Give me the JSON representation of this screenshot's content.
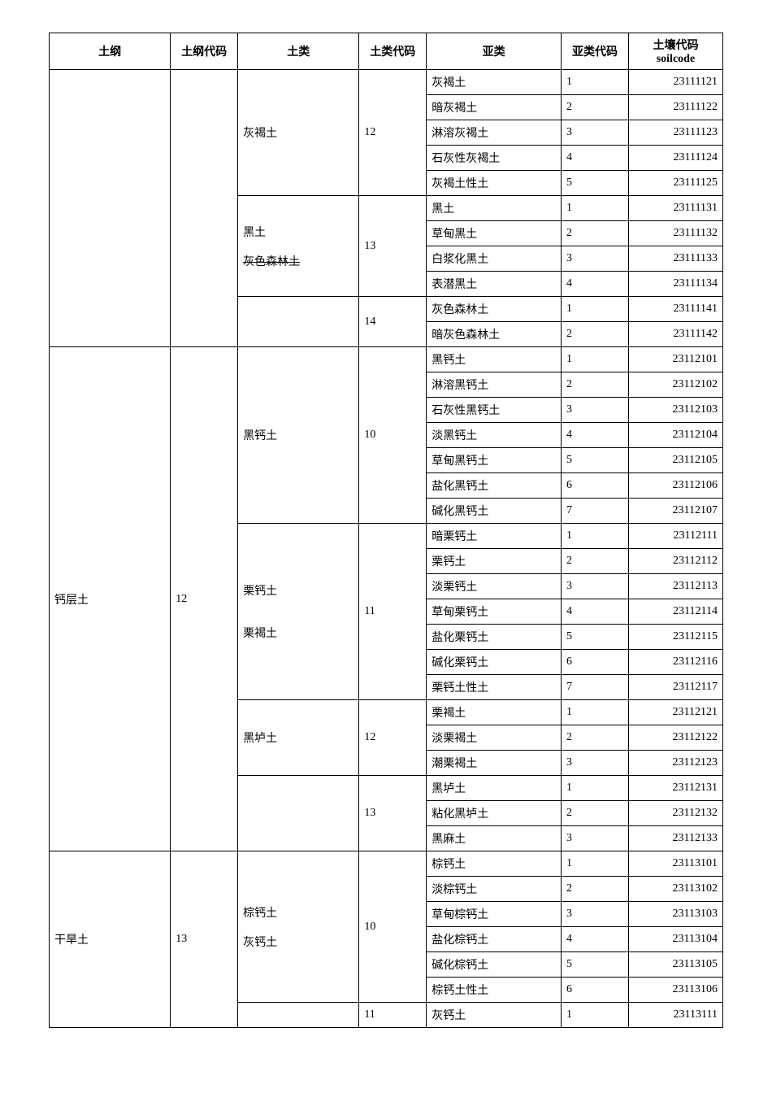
{
  "headers": {
    "h1": "土纲",
    "h2": "土纲代码",
    "h3": "土类",
    "h4": "土类代码",
    "h5": "亚类",
    "h6": "亚类代码",
    "h7": "土壤代码 soilcode"
  },
  "tugang": {
    "empty": "",
    "gaicengtu": "钙层土",
    "ganhantu": "干旱土"
  },
  "tugangcode": {
    "empty": "",
    "c12": "12",
    "c13": "13"
  },
  "tulei": {
    "huihetu": "灰褐土",
    "heitu": "黑土",
    "huisesenlintu": "灰色森林土",
    "heigaitu": "黑钙土",
    "ligaitu": "栗钙土",
    "lihetu": "栗褐土",
    "heilutu": "黑垆土",
    "zonggaitu": "棕钙土",
    "huigaitu": "灰钙土"
  },
  "tuleicode": {
    "c10": "10",
    "c11": "11",
    "c12": "12",
    "c13": "13",
    "c14": "14"
  },
  "rows": [
    {
      "sub": "灰褐土",
      "subcode": "1",
      "soil": "23111121"
    },
    {
      "sub": "暗灰褐土",
      "subcode": "2",
      "soil": "23111122"
    },
    {
      "sub": "淋溶灰褐土",
      "subcode": "3",
      "soil": "23111123"
    },
    {
      "sub": "石灰性灰褐土",
      "subcode": "4",
      "soil": "23111124"
    },
    {
      "sub": "灰褐土性土",
      "subcode": "5",
      "soil": "23111125"
    },
    {
      "sub": "黑土",
      "subcode": "1",
      "soil": "23111131"
    },
    {
      "sub": "草甸黑土",
      "subcode": "2",
      "soil": "23111132"
    },
    {
      "sub": "白浆化黑土",
      "subcode": "3",
      "soil": "23111133"
    },
    {
      "sub": "表潜黑土",
      "subcode": "4",
      "soil": "23111134"
    },
    {
      "sub": "灰色森林土",
      "subcode": "1",
      "soil": "23111141"
    },
    {
      "sub": "暗灰色森林土",
      "subcode": "2",
      "soil": "23111142"
    },
    {
      "sub": "黑钙土",
      "subcode": "1",
      "soil": "23112101"
    },
    {
      "sub": "淋溶黑钙土",
      "subcode": "2",
      "soil": "23112102"
    },
    {
      "sub": "石灰性黑钙土",
      "subcode": "3",
      "soil": "23112103"
    },
    {
      "sub": "淡黑钙土",
      "subcode": "4",
      "soil": "23112104"
    },
    {
      "sub": "草甸黑钙土",
      "subcode": "5",
      "soil": "23112105"
    },
    {
      "sub": "盐化黑钙土",
      "subcode": "6",
      "soil": "23112106"
    },
    {
      "sub": "碱化黑钙土",
      "subcode": "7",
      "soil": "23112107"
    },
    {
      "sub": "暗栗钙土",
      "subcode": "1",
      "soil": "23112111"
    },
    {
      "sub": "栗钙土",
      "subcode": "2",
      "soil": "23112112"
    },
    {
      "sub": "淡栗钙土",
      "subcode": "3",
      "soil": "23112113"
    },
    {
      "sub": "草甸栗钙土",
      "subcode": "4",
      "soil": "23112114"
    },
    {
      "sub": "盐化栗钙土",
      "subcode": "5",
      "soil": "23112115"
    },
    {
      "sub": "碱化栗钙土",
      "subcode": "6",
      "soil": "23112116"
    },
    {
      "sub": "栗钙土性土",
      "subcode": "7",
      "soil": "23112117"
    },
    {
      "sub": "栗褐土",
      "subcode": "1",
      "soil": "23112121"
    },
    {
      "sub": "淡栗褐土",
      "subcode": "2",
      "soil": "23112122"
    },
    {
      "sub": "潮栗褐土",
      "subcode": "3",
      "soil": "23112123"
    },
    {
      "sub": "黑垆土",
      "subcode": "1",
      "soil": "23112131"
    },
    {
      "sub": "粘化黑垆土",
      "subcode": "2",
      "soil": "23112132"
    },
    {
      "sub": "黑麻土",
      "subcode": "3",
      "soil": "23112133"
    },
    {
      "sub": "棕钙土",
      "subcode": "1",
      "soil": "23113101"
    },
    {
      "sub": "淡棕钙土",
      "subcode": "2",
      "soil": "23113102"
    },
    {
      "sub": "草甸棕钙土",
      "subcode": "3",
      "soil": "23113103"
    },
    {
      "sub": "盐化棕钙土",
      "subcode": "4",
      "soil": "23113104"
    },
    {
      "sub": "碱化棕钙土",
      "subcode": "5",
      "soil": "23113105"
    },
    {
      "sub": "棕钙土性土",
      "subcode": "6",
      "soil": "23113106"
    },
    {
      "sub": "灰钙土",
      "subcode": "1",
      "soil": "23113111"
    }
  ]
}
